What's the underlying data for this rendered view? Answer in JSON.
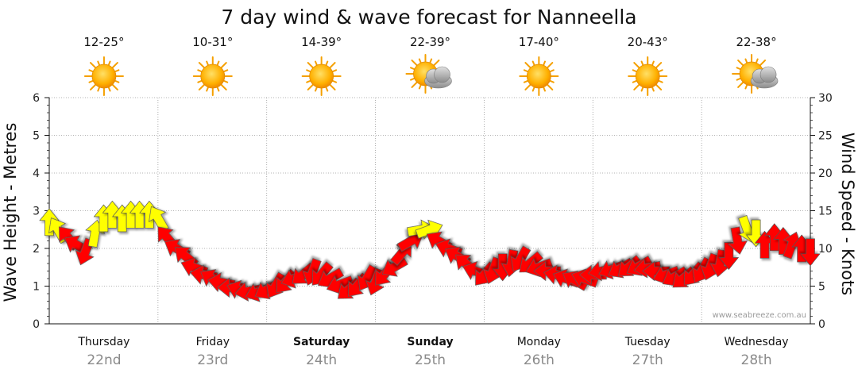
{
  "chart_data": {
    "type": "line",
    "title": "7 day wind & wave forecast for Nanneella",
    "ylabel_left": "Wave Height - Metres",
    "ylabel_right": "Wind Speed - Knots",
    "ylim_left": [
      0,
      6
    ],
    "ylim_right": [
      0,
      30
    ],
    "yticks_left": [
      "0",
      "1",
      "2",
      "3",
      "4",
      "5",
      "6"
    ],
    "yticks_right": [
      "0",
      "5",
      "10",
      "15",
      "20",
      "25",
      "30"
    ],
    "credit": "www.seabreeze.com.au",
    "days": [
      {
        "name": "Thursday",
        "date": "22nd",
        "temp": "12-25°",
        "weather": "sun-icon",
        "bold": false
      },
      {
        "name": "Friday",
        "date": "23rd",
        "temp": "10-31°",
        "weather": "sun-icon",
        "bold": false
      },
      {
        "name": "Saturday",
        "date": "24th",
        "temp": "14-39°",
        "weather": "sun-icon",
        "bold": true
      },
      {
        "name": "Sunday",
        "date": "25th",
        "temp": "22-39°",
        "weather": "sun-cloud-icon",
        "bold": true
      },
      {
        "name": "Monday",
        "date": "26th",
        "temp": "17-40°",
        "weather": "sun-icon",
        "bold": false
      },
      {
        "name": "Tuesday",
        "date": "27th",
        "temp": "20-43°",
        "weather": "sun-icon",
        "bold": false
      },
      {
        "name": "Wednesday",
        "date": "28th",
        "temp": "22-38°",
        "weather": "sun-cloud-icon",
        "bold": false
      }
    ],
    "colors": {
      "strong_wind": "#ffff00",
      "light_wind": "#ff0000",
      "outline": "#555555"
    },
    "wind_series": {
      "name": "Wind",
      "x_days": [
        0.0,
        0.08,
        0.17,
        0.25,
        0.33,
        0.42,
        0.5,
        0.58,
        0.67,
        0.75,
        0.83,
        0.92,
        1.0,
        1.08,
        1.17,
        1.25,
        1.33,
        1.42,
        1.5,
        1.58,
        1.67,
        1.75,
        1.83,
        1.92,
        2.0,
        2.08,
        2.17,
        2.25,
        2.33,
        2.42,
        2.5,
        2.58,
        2.67,
        2.75,
        2.83,
        2.92,
        3.0,
        3.08,
        3.17,
        3.25,
        3.33,
        3.42,
        3.5,
        3.58,
        3.67,
        3.75,
        3.83,
        3.92,
        4.0,
        4.08,
        4.17,
        4.25,
        4.33,
        4.42,
        4.5,
        4.58,
        4.67,
        4.75,
        4.83,
        4.92,
        5.0,
        5.08,
        5.17,
        5.25,
        5.33,
        5.42,
        5.5,
        5.58,
        5.67,
        5.75,
        5.83,
        5.92,
        6.0,
        6.08,
        6.17,
        6.25,
        6.33,
        6.42,
        6.5,
        6.58,
        6.67,
        6.75,
        6.83,
        6.92,
        7.0
      ],
      "speed_knots": [
        13.5,
        12.5,
        11.5,
        10.5,
        9.5,
        12,
        14,
        14.5,
        14,
        14.5,
        14.5,
        14.5,
        14,
        11.5,
        10,
        9,
        7.5,
        6.5,
        6,
        5.5,
        4.8,
        4.5,
        4.3,
        4.2,
        4.5,
        5,
        5.5,
        6,
        6.5,
        6.8,
        6.5,
        6,
        5.2,
        4.5,
        5,
        6,
        5.5,
        6.5,
        7.5,
        9.5,
        11,
        12.5,
        12.5,
        11,
        10,
        9,
        8,
        7,
        6.5,
        7,
        7.5,
        8,
        8.5,
        8,
        7.5,
        7,
        6.5,
        6,
        5.8,
        6,
        6.5,
        7,
        7.2,
        7.3,
        7.5,
        7.6,
        7.4,
        7,
        6.5,
        6.2,
        6,
        6.5,
        7,
        7.5,
        8,
        9,
        11,
        12.5,
        12,
        10.5,
        11.5,
        11,
        10.5,
        10,
        9.5
      ],
      "direction_deg": [
        0,
        330,
        320,
        300,
        200,
        10,
        0,
        0,
        0,
        0,
        0,
        0,
        330,
        320,
        300,
        310,
        290,
        280,
        300,
        280,
        270,
        290,
        260,
        250,
        240,
        210,
        220,
        250,
        230,
        200,
        220,
        240,
        250,
        230,
        220,
        210,
        200,
        220,
        240,
        40,
        60,
        80,
        70,
        300,
        290,
        300,
        310,
        290,
        220,
        200,
        180,
        190,
        210,
        230,
        250,
        270,
        280,
        290,
        300,
        290,
        270,
        260,
        250,
        240,
        230,
        240,
        260,
        270,
        250,
        240,
        230,
        220,
        210,
        200,
        190,
        180,
        170,
        160,
        180,
        0,
        0,
        0,
        20,
        0,
        180
      ]
    }
  }
}
